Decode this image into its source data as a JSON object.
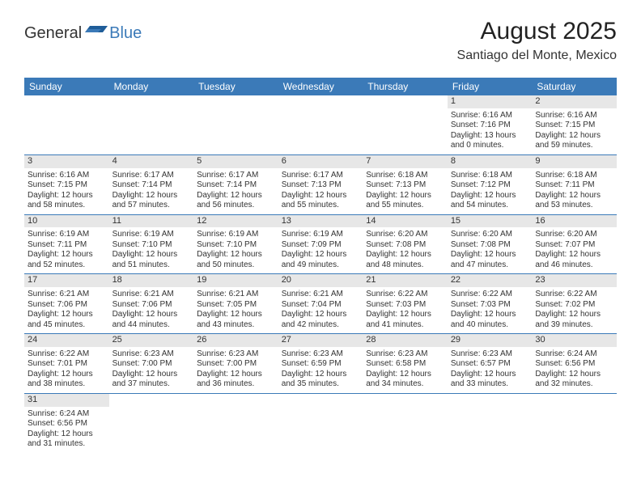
{
  "logo": {
    "general": "General",
    "blue": "Blue"
  },
  "heading": {
    "month": "August 2025",
    "location": "Santiago del Monte, Mexico"
  },
  "style": {
    "header_bg": "#3b7ab8",
    "header_fg": "#ffffff",
    "daynum_bg": "#e7e7e7",
    "border_color": "#3b7ab8",
    "page_bg": "#ffffff",
    "text_color": "#333333",
    "month_fontsize": 30,
    "location_fontsize": 16,
    "dayhead_fontsize": 12,
    "cell_fontsize": 10
  },
  "dayHeaders": [
    "Sunday",
    "Monday",
    "Tuesday",
    "Wednesday",
    "Thursday",
    "Friday",
    "Saturday"
  ],
  "weeks": [
    [
      null,
      null,
      null,
      null,
      null,
      {
        "n": "1",
        "sr": "Sunrise: 6:16 AM",
        "ss": "Sunset: 7:16 PM",
        "dl": "Daylight: 13 hours and 0 minutes."
      },
      {
        "n": "2",
        "sr": "Sunrise: 6:16 AM",
        "ss": "Sunset: 7:15 PM",
        "dl": "Daylight: 12 hours and 59 minutes."
      }
    ],
    [
      {
        "n": "3",
        "sr": "Sunrise: 6:16 AM",
        "ss": "Sunset: 7:15 PM",
        "dl": "Daylight: 12 hours and 58 minutes."
      },
      {
        "n": "4",
        "sr": "Sunrise: 6:17 AM",
        "ss": "Sunset: 7:14 PM",
        "dl": "Daylight: 12 hours and 57 minutes."
      },
      {
        "n": "5",
        "sr": "Sunrise: 6:17 AM",
        "ss": "Sunset: 7:14 PM",
        "dl": "Daylight: 12 hours and 56 minutes."
      },
      {
        "n": "6",
        "sr": "Sunrise: 6:17 AM",
        "ss": "Sunset: 7:13 PM",
        "dl": "Daylight: 12 hours and 55 minutes."
      },
      {
        "n": "7",
        "sr": "Sunrise: 6:18 AM",
        "ss": "Sunset: 7:13 PM",
        "dl": "Daylight: 12 hours and 55 minutes."
      },
      {
        "n": "8",
        "sr": "Sunrise: 6:18 AM",
        "ss": "Sunset: 7:12 PM",
        "dl": "Daylight: 12 hours and 54 minutes."
      },
      {
        "n": "9",
        "sr": "Sunrise: 6:18 AM",
        "ss": "Sunset: 7:11 PM",
        "dl": "Daylight: 12 hours and 53 minutes."
      }
    ],
    [
      {
        "n": "10",
        "sr": "Sunrise: 6:19 AM",
        "ss": "Sunset: 7:11 PM",
        "dl": "Daylight: 12 hours and 52 minutes."
      },
      {
        "n": "11",
        "sr": "Sunrise: 6:19 AM",
        "ss": "Sunset: 7:10 PM",
        "dl": "Daylight: 12 hours and 51 minutes."
      },
      {
        "n": "12",
        "sr": "Sunrise: 6:19 AM",
        "ss": "Sunset: 7:10 PM",
        "dl": "Daylight: 12 hours and 50 minutes."
      },
      {
        "n": "13",
        "sr": "Sunrise: 6:19 AM",
        "ss": "Sunset: 7:09 PM",
        "dl": "Daylight: 12 hours and 49 minutes."
      },
      {
        "n": "14",
        "sr": "Sunrise: 6:20 AM",
        "ss": "Sunset: 7:08 PM",
        "dl": "Daylight: 12 hours and 48 minutes."
      },
      {
        "n": "15",
        "sr": "Sunrise: 6:20 AM",
        "ss": "Sunset: 7:08 PM",
        "dl": "Daylight: 12 hours and 47 minutes."
      },
      {
        "n": "16",
        "sr": "Sunrise: 6:20 AM",
        "ss": "Sunset: 7:07 PM",
        "dl": "Daylight: 12 hours and 46 minutes."
      }
    ],
    [
      {
        "n": "17",
        "sr": "Sunrise: 6:21 AM",
        "ss": "Sunset: 7:06 PM",
        "dl": "Daylight: 12 hours and 45 minutes."
      },
      {
        "n": "18",
        "sr": "Sunrise: 6:21 AM",
        "ss": "Sunset: 7:06 PM",
        "dl": "Daylight: 12 hours and 44 minutes."
      },
      {
        "n": "19",
        "sr": "Sunrise: 6:21 AM",
        "ss": "Sunset: 7:05 PM",
        "dl": "Daylight: 12 hours and 43 minutes."
      },
      {
        "n": "20",
        "sr": "Sunrise: 6:21 AM",
        "ss": "Sunset: 7:04 PM",
        "dl": "Daylight: 12 hours and 42 minutes."
      },
      {
        "n": "21",
        "sr": "Sunrise: 6:22 AM",
        "ss": "Sunset: 7:03 PM",
        "dl": "Daylight: 12 hours and 41 minutes."
      },
      {
        "n": "22",
        "sr": "Sunrise: 6:22 AM",
        "ss": "Sunset: 7:03 PM",
        "dl": "Daylight: 12 hours and 40 minutes."
      },
      {
        "n": "23",
        "sr": "Sunrise: 6:22 AM",
        "ss": "Sunset: 7:02 PM",
        "dl": "Daylight: 12 hours and 39 minutes."
      }
    ],
    [
      {
        "n": "24",
        "sr": "Sunrise: 6:22 AM",
        "ss": "Sunset: 7:01 PM",
        "dl": "Daylight: 12 hours and 38 minutes."
      },
      {
        "n": "25",
        "sr": "Sunrise: 6:23 AM",
        "ss": "Sunset: 7:00 PM",
        "dl": "Daylight: 12 hours and 37 minutes."
      },
      {
        "n": "26",
        "sr": "Sunrise: 6:23 AM",
        "ss": "Sunset: 7:00 PM",
        "dl": "Daylight: 12 hours and 36 minutes."
      },
      {
        "n": "27",
        "sr": "Sunrise: 6:23 AM",
        "ss": "Sunset: 6:59 PM",
        "dl": "Daylight: 12 hours and 35 minutes."
      },
      {
        "n": "28",
        "sr": "Sunrise: 6:23 AM",
        "ss": "Sunset: 6:58 PM",
        "dl": "Daylight: 12 hours and 34 minutes."
      },
      {
        "n": "29",
        "sr": "Sunrise: 6:23 AM",
        "ss": "Sunset: 6:57 PM",
        "dl": "Daylight: 12 hours and 33 minutes."
      },
      {
        "n": "30",
        "sr": "Sunrise: 6:24 AM",
        "ss": "Sunset: 6:56 PM",
        "dl": "Daylight: 12 hours and 32 minutes."
      }
    ],
    [
      {
        "n": "31",
        "sr": "Sunrise: 6:24 AM",
        "ss": "Sunset: 6:56 PM",
        "dl": "Daylight: 12 hours and 31 minutes."
      },
      null,
      null,
      null,
      null,
      null,
      null
    ]
  ]
}
